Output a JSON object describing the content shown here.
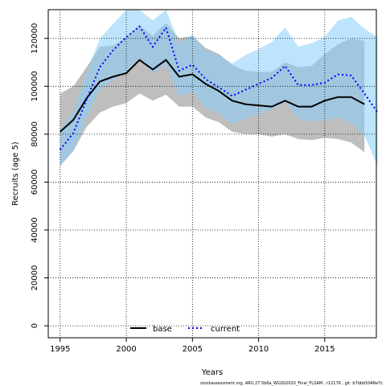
{
  "chart_data": {
    "type": "line",
    "xlabel": "Years",
    "ylabel": "Recruits (age 5)",
    "xlim": [
      1994.1,
      2018.9
    ],
    "ylim": [
      -5000,
      132000
    ],
    "xticks": [
      1995,
      2000,
      2005,
      2010,
      2015
    ],
    "yticks": [
      0,
      20000,
      40000,
      60000,
      80000,
      100000,
      120000
    ],
    "grid": true,
    "legend_position": "bottom-center",
    "footer": "stockassessment.org,  ARU.27.5b6a_WGSS2020_Final_FLSAM ,  r12176 ,  git: b7bbb5048e7c",
    "x": [
      1995,
      1996,
      1997,
      1998,
      1999,
      2000,
      2001,
      2002,
      2003,
      2004,
      2005,
      2006,
      2007,
      2008,
      2009,
      2010,
      2011,
      2012,
      2013,
      2014,
      2015,
      2016,
      2017,
      2018,
      2019
    ],
    "series": [
      {
        "name": "base",
        "color": "#000000",
        "dash": "solid",
        "band_color": "#bebebe",
        "values": [
          81000,
          86000,
          95000,
          102000,
          104000,
          105500,
          111000,
          107000,
          111000,
          104000,
          105000,
          101000,
          98000,
          94000,
          92500,
          92000,
          91500,
          94000,
          91500,
          91500,
          94000,
          95500,
          95500,
          92500,
          null
        ],
        "lower": [
          67000,
          73000,
          83000,
          89000,
          91500,
          93000,
          97000,
          94000,
          96500,
          91500,
          91500,
          87000,
          85000,
          81000,
          80000,
          80000,
          79000,
          80000,
          78000,
          77500,
          78500,
          78000,
          76500,
          72500,
          null
        ],
        "upper": [
          97000,
          100000,
          108000,
          116500,
          117000,
          120500,
          125500,
          121000,
          126500,
          120000,
          121000,
          116000,
          113500,
          109000,
          106500,
          106000,
          106000,
          110000,
          108000,
          108500,
          113500,
          117500,
          120000,
          119000,
          null
        ]
      },
      {
        "name": "current",
        "color": "#0000ff",
        "dash": "dotted",
        "band_color": "#87cefa",
        "values": [
          73500,
          80500,
          94500,
          108000,
          115000,
          120500,
          125000,
          116500,
          124500,
          106500,
          109000,
          103000,
          99500,
          96000,
          98500,
          101000,
          103500,
          108500,
          100500,
          100500,
          101500,
          105000,
          104500,
          97000,
          89000
        ],
        "lower": [
          66500,
          73000,
          87000,
          99000,
          102500,
          106000,
          112000,
          105000,
          109500,
          96000,
          97500,
          91000,
          88500,
          84500,
          86500,
          88500,
          90500,
          93500,
          86500,
          85500,
          85500,
          87000,
          84500,
          79500,
          66500
        ],
        "upper": [
          82000,
          89500,
          105500,
          120000,
          126000,
          133000,
          133000,
          127500,
          135000,
          118000,
          121500,
          115000,
          113000,
          109500,
          113000,
          115500,
          118500,
          124500,
          116500,
          118000,
          120500,
          127500,
          129000,
          124000,
          120500
        ]
      }
    ]
  }
}
